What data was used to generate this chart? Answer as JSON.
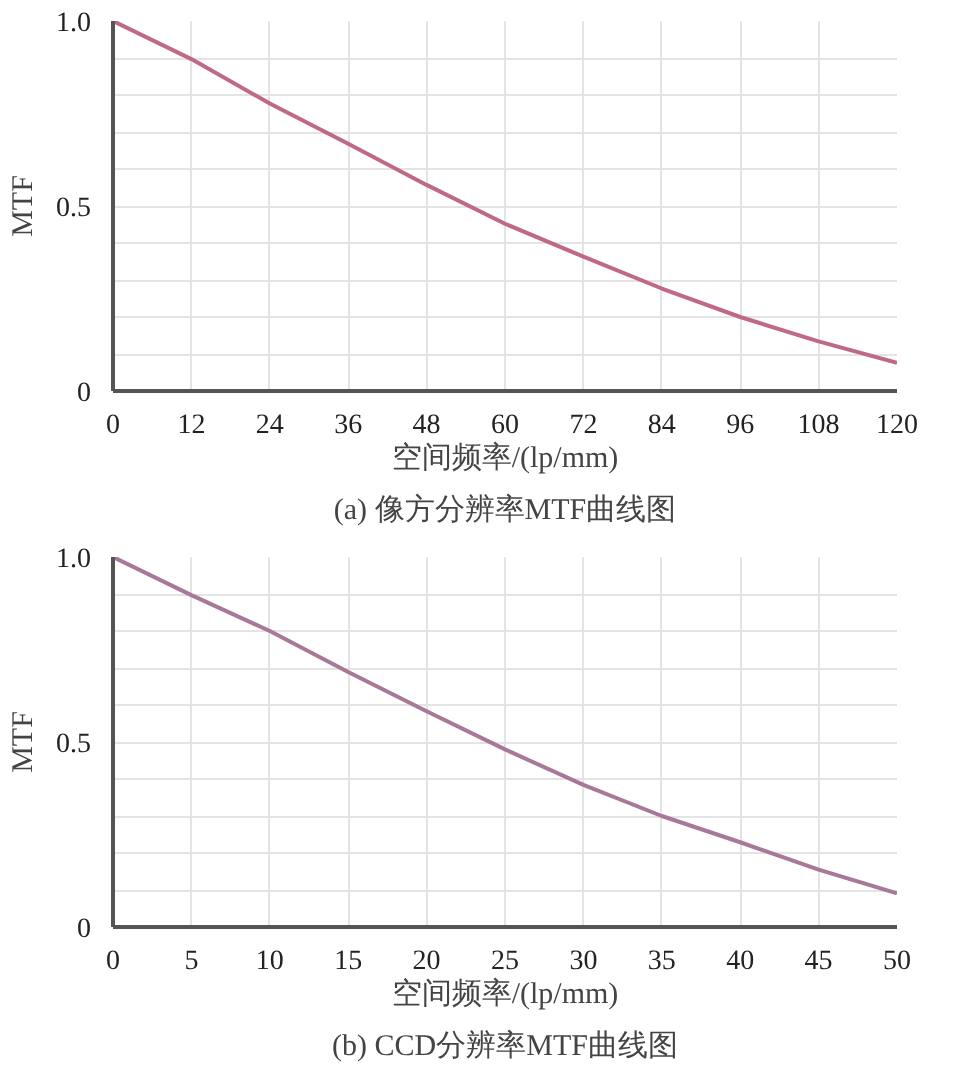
{
  "chart_data": [
    {
      "type": "line",
      "title": "(a) 像方分辨率MTF曲线图",
      "xlabel": "空间频率/(lp/mm)",
      "ylabel": "MTF",
      "x": [
        0,
        12,
        24,
        36,
        48,
        60,
        72,
        84,
        96,
        108,
        120
      ],
      "series": [
        {
          "color": "#c06888",
          "values": [
            1.0,
            0.897,
            0.777,
            0.668,
            0.557,
            0.452,
            0.363,
            0.277,
            0.2,
            0.134,
            0.076
          ]
        }
      ],
      "xlim": [
        0,
        120
      ],
      "xticks": [
        0,
        12,
        24,
        36,
        48,
        60,
        72,
        84,
        96,
        108,
        120
      ],
      "ylim": [
        0,
        1.0
      ],
      "yticks": [
        0,
        {
          "value": 0.1,
          "label": null
        },
        {
          "value": 0.2,
          "label": null
        },
        {
          "value": 0.3,
          "label": null
        },
        {
          "value": 0.4,
          "label": null
        },
        0.5,
        {
          "value": 0.6,
          "label": null
        },
        {
          "value": 0.7,
          "label": null
        },
        {
          "value": 0.8,
          "label": null
        },
        {
          "value": 0.9,
          "label": null
        },
        {
          "value": 1.0,
          "label": "1.0"
        }
      ],
      "grid": true,
      "marker": "none",
      "line_style": "solid"
    },
    {
      "type": "line",
      "title": "(b) CCD分辨率MTF曲线图",
      "xlabel": "空间频率/(lp/mm)",
      "ylabel": "MTF",
      "x": [
        0,
        5,
        10,
        15,
        20,
        25,
        30,
        35,
        40,
        45,
        50
      ],
      "series": [
        {
          "color": "#a87898",
          "values": [
            1.0,
            0.897,
            0.8,
            0.689,
            0.583,
            0.48,
            0.384,
            0.3,
            0.229,
            0.155,
            0.091
          ]
        }
      ],
      "xlim": [
        0,
        50
      ],
      "xticks": [
        0,
        5,
        10,
        15,
        20,
        25,
        30,
        35,
        40,
        45,
        50
      ],
      "ylim": [
        0,
        1.0
      ],
      "yticks": [
        0,
        {
          "value": 0.1,
          "label": null
        },
        {
          "value": 0.2,
          "label": null
        },
        {
          "value": 0.3,
          "label": null
        },
        {
          "value": 0.4,
          "label": null
        },
        0.5,
        {
          "value": 0.6,
          "label": null
        },
        {
          "value": 0.7,
          "label": null
        },
        {
          "value": 0.8,
          "label": null
        },
        {
          "value": 0.9,
          "label": null
        },
        {
          "value": 1.0,
          "label": "1.0"
        }
      ],
      "grid": true,
      "marker": "none",
      "line_style": "solid"
    }
  ]
}
